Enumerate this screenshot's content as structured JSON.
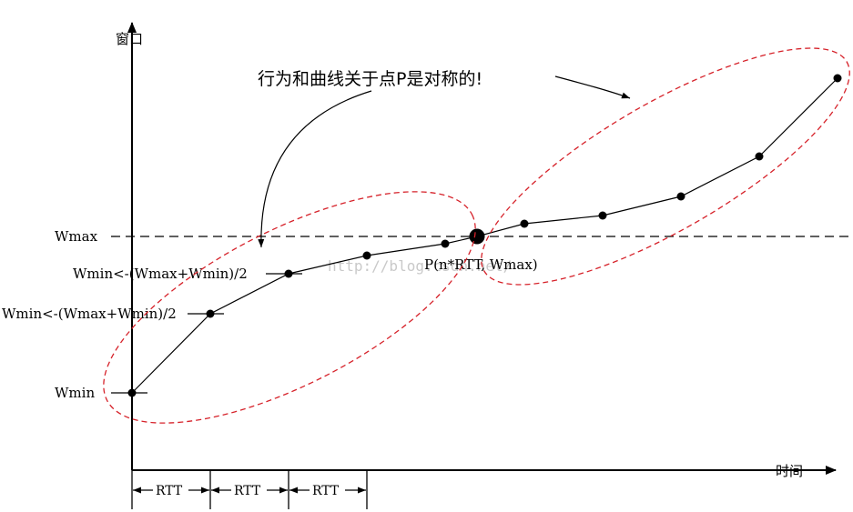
{
  "labels": {
    "y_axis": "窗口",
    "x_axis": "时间",
    "wmax": "Wmax",
    "wmin": "Wmin",
    "update_rule_1": "Wmin<-(Wmax+Wmin)/2",
    "update_rule_2": "Wmin<-(Wmax+Wmin)/2",
    "point_p": "P(n*RTT, Wmax)",
    "annotation": "行为和曲线关于点P是对称的!",
    "watermark": "http://blog.csdn.net/"
  },
  "rtt": [
    "RTT",
    "RTT",
    "RTT"
  ],
  "colors": {
    "ellipse": "#d6222a",
    "line": "#000000"
  }
}
